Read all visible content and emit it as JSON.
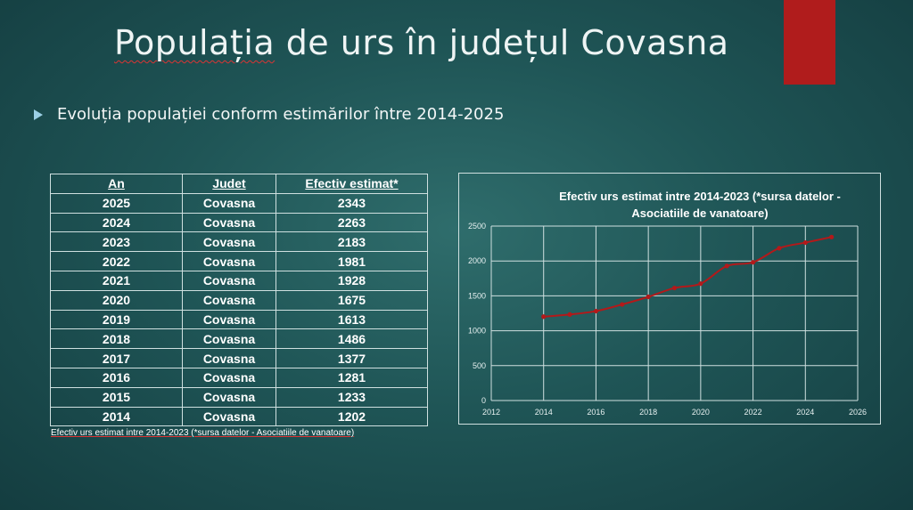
{
  "slide": {
    "title_a": "Populația",
    "title_b": " de urs în județul Covasna",
    "bullet": "Evoluția populației conform estimărilor între 2014-2025",
    "source_note": "Efectiv urs estimat intre 2014-2023 (*sursa datelor - Asociatiile de vanatoare)"
  },
  "table": {
    "headers": [
      "An",
      "Judet",
      "Efectiv estimat*"
    ],
    "rows": [
      [
        "2025",
        "Covasna",
        "2343"
      ],
      [
        "2024",
        "Covasna",
        "2263"
      ],
      [
        "2023",
        "Covasna",
        "2183"
      ],
      [
        "2022",
        "Covasna",
        "1981"
      ],
      [
        "2021",
        "Covasna",
        "1928"
      ],
      [
        "2020",
        "Covasna",
        "1675"
      ],
      [
        "2019",
        "Covasna",
        "1613"
      ],
      [
        "2018",
        "Covasna",
        "1486"
      ],
      [
        "2017",
        "Covasna",
        "1377"
      ],
      [
        "2016",
        "Covasna",
        "1281"
      ],
      [
        "2015",
        "Covasna",
        "1233"
      ],
      [
        "2014",
        "Covasna",
        "1202"
      ]
    ]
  },
  "colors": {
    "accent_red": "#b01c1c",
    "series": "#b3191a"
  },
  "chart_data": {
    "type": "scatter",
    "title_line1": "Efectiv urs estimat intre 2014-2023 (*sursa datelor -",
    "title_line2": "Asociatiile de vanatoare)",
    "xlabel": "",
    "ylabel": "",
    "xlim": [
      2012,
      2026
    ],
    "ylim": [
      0,
      2500
    ],
    "xticks": [
      2012,
      2014,
      2016,
      2018,
      2020,
      2022,
      2024,
      2026
    ],
    "yticks": [
      0,
      500,
      1000,
      1500,
      2000,
      2500
    ],
    "grid": true,
    "smooth_line": true,
    "series": [
      {
        "x": [
          2014,
          2015,
          2016,
          2017,
          2018,
          2019,
          2020,
          2021,
          2022,
          2023,
          2024,
          2025
        ],
        "values": [
          1202,
          1233,
          1281,
          1377,
          1486,
          1613,
          1675,
          1928,
          1981,
          2183,
          2263,
          2343
        ]
      }
    ]
  }
}
